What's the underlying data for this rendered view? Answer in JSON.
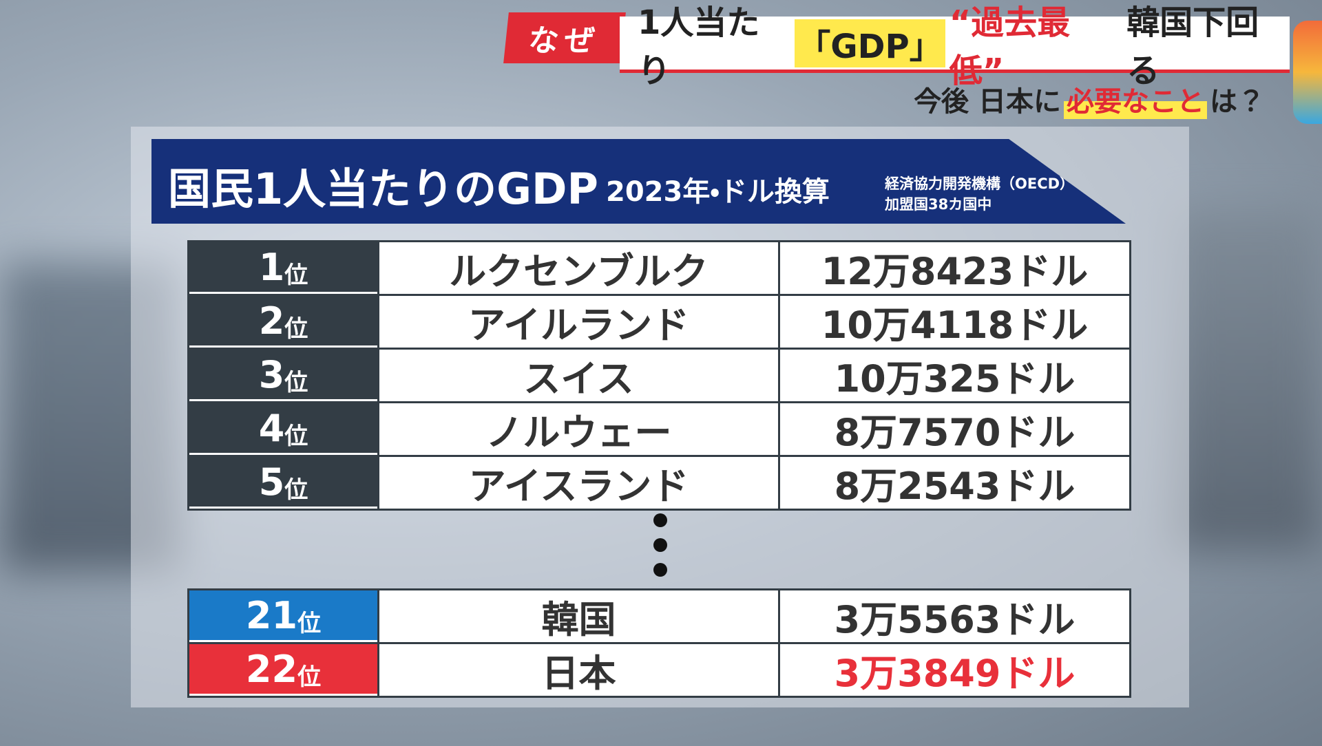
{
  "header": {
    "tag": "なぜ",
    "headline": [
      "1人当たり",
      "「GDP」",
      "“過去最低”",
      "韓国下回る"
    ],
    "subheadline": [
      "今後 日本に",
      "必要なこと",
      "は？"
    ]
  },
  "panel": {
    "title": "国民1人当たりのGDP",
    "subtitle": "2023年・ドル換算",
    "source": [
      "経済協力開発機構（OECD）",
      "加盟国38カ国中"
    ]
  },
  "table": {
    "rows": [
      [
        "1",
        "位",
        "ルクセンブルク",
        "12万8423ドル"
      ],
      [
        "2",
        "位",
        "アイルランド",
        "10万4118ドル"
      ],
      [
        "3",
        "位",
        "スイス",
        "10万325ドル"
      ],
      [
        "4",
        "位",
        "ノルウェー",
        "8万7570ドル"
      ],
      [
        "5",
        "位",
        "アイスランド",
        "8万2543ドル"
      ],
      [
        "21",
        "位",
        "韓国",
        "3万5563ドル"
      ],
      [
        "22",
        "位",
        "日本",
        "3万3849ドル"
      ]
    ]
  }
}
